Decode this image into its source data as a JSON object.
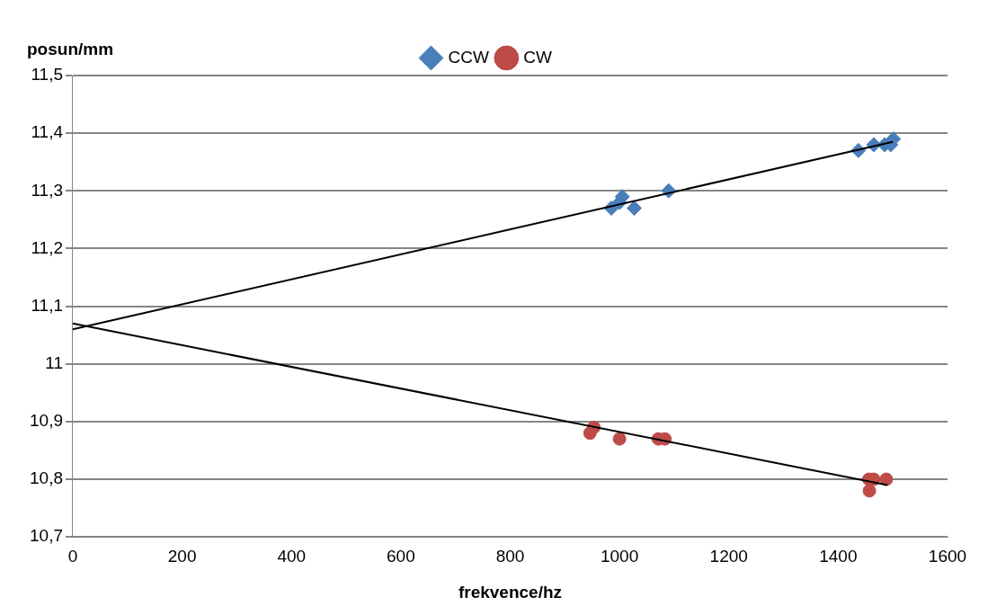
{
  "chart_data": {
    "type": "scatter",
    "xlabel": "frekvence/hz",
    "ylabel": "posun/mm",
    "xlim": [
      0,
      1600
    ],
    "xticks": [
      0,
      200,
      400,
      600,
      800,
      1000,
      1200,
      1400,
      1600
    ],
    "ylim": [
      10.7,
      11.5
    ],
    "yticks": [
      {
        "value": 10.7,
        "label": "10,7"
      },
      {
        "value": 10.8,
        "label": "10,8"
      },
      {
        "value": 10.9,
        "label": "10,9"
      },
      {
        "value": 11,
        "label": "11"
      },
      {
        "value": 11.1,
        "label": "11,1"
      },
      {
        "value": 11.2,
        "label": "11,2"
      },
      {
        "value": 11.3,
        "label": "11,3"
      },
      {
        "value": 11.4,
        "label": "11,4"
      },
      {
        "value": 11.5,
        "label": "11,5"
      }
    ],
    "grid": "y",
    "legend": "top",
    "series": [
      {
        "name": "CCW",
        "color": "#4a7ebb",
        "marker": "diamond",
        "x": [
          985,
          1000,
          1005,
          1027,
          1090,
          1437,
          1465,
          1485,
          1496,
          1501
        ],
        "values": [
          11.27,
          11.28,
          11.29,
          11.27,
          11.3,
          11.37,
          11.38,
          11.38,
          11.38,
          11.39
        ]
      },
      {
        "name": "CW",
        "color": "#be4b48",
        "marker": "circle",
        "x": [
          946,
          953,
          1000,
          1071,
          1083,
          1456,
          1457,
          1465,
          1488
        ],
        "values": [
          10.88,
          10.89,
          10.87,
          10.87,
          10.87,
          10.8,
          10.78,
          10.8,
          10.8
        ]
      },
      {
        "type": "line",
        "color": "#000000",
        "marker": "none",
        "x": [
          0,
          1500
        ],
        "values": [
          11.06,
          11.385
        ]
      },
      {
        "type": "line",
        "color": "#000000",
        "marker": "none",
        "x": [
          0,
          1490
        ],
        "values": [
          11.07,
          10.79
        ]
      }
    ]
  }
}
